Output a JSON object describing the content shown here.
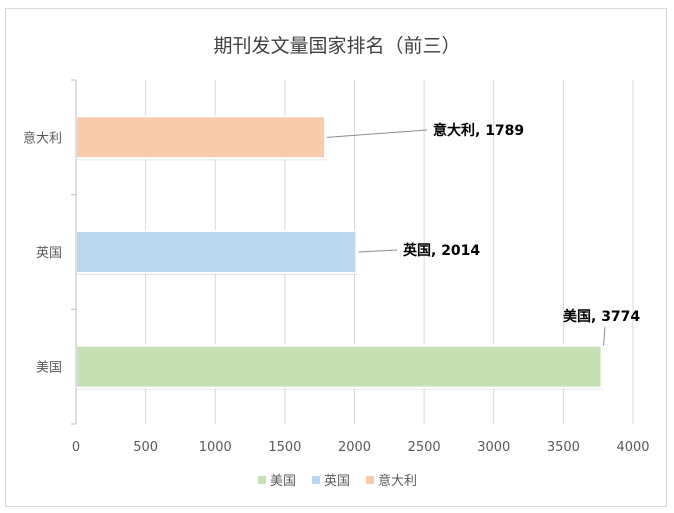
{
  "chart_data": {
    "type": "bar",
    "orientation": "horizontal",
    "title": "期刊发文量国家排名（前三）",
    "xlabel": "",
    "ylabel": "",
    "xlim": [
      0,
      4000
    ],
    "xticks": [
      0,
      500,
      1000,
      1500,
      2000,
      2500,
      3000,
      3500,
      4000
    ],
    "grid": true,
    "legend_position": "bottom",
    "categories": [
      "美国",
      "英国",
      "意大利"
    ],
    "values": [
      3774,
      2014,
      1789
    ],
    "colors": [
      "#c5e0b4",
      "#bdd7ee",
      "#f8cbad"
    ],
    "data_labels": [
      "美国, 3774",
      "英国, 2014",
      "意大利, 1789"
    ],
    "legend": [
      "美国",
      "英国",
      "意大利"
    ]
  }
}
